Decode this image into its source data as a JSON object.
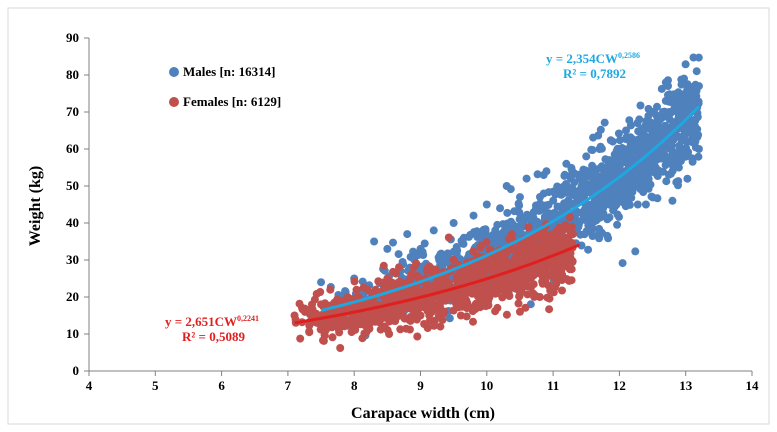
{
  "chart_data": {
    "type": "scatter",
    "title": "",
    "xlabel": "Carapace width (cm)",
    "ylabel": "Weight  (kg)",
    "xlim": [
      4,
      14
    ],
    "ylim": [
      0,
      90
    ],
    "xticks": [
      4,
      5,
      6,
      7,
      8,
      9,
      10,
      11,
      12,
      13,
      14
    ],
    "yticks": [
      0,
      10,
      20,
      30,
      40,
      50,
      60,
      70,
      80,
      90
    ],
    "grid": false,
    "legend_placement": "top-left",
    "series": [
      {
        "name": "Males [n: 16314]",
        "color": "#4F81BD",
        "x_range": [
          7.5,
          13.2
        ],
        "count": 16314,
        "points": [
          [
            7.5,
            24
          ],
          [
            7.8,
            14
          ],
          [
            7.8,
            20
          ],
          [
            8.0,
            25
          ],
          [
            8.2,
            19
          ],
          [
            8.3,
            35
          ],
          [
            8.5,
            33
          ],
          [
            8.7,
            27
          ],
          [
            8.8,
            37
          ],
          [
            9.0,
            33
          ],
          [
            9.2,
            38
          ],
          [
            9.3,
            22
          ],
          [
            9.5,
            40
          ],
          [
            9.6,
            28
          ],
          [
            9.8,
            42
          ],
          [
            9.9,
            31
          ],
          [
            10.0,
            45
          ],
          [
            10.1,
            35
          ],
          [
            10.2,
            44
          ],
          [
            10.3,
            50
          ],
          [
            10.4,
            38
          ],
          [
            10.5,
            47
          ],
          [
            10.6,
            52
          ],
          [
            10.7,
            36
          ],
          [
            10.8,
            45
          ],
          [
            10.9,
            54
          ],
          [
            11.0,
            42
          ],
          [
            11.1,
            48
          ],
          [
            11.2,
            56
          ],
          [
            11.3,
            40
          ],
          [
            11.4,
            52
          ],
          [
            11.5,
            58
          ],
          [
            11.6,
            45
          ],
          [
            11.7,
            60
          ],
          [
            11.8,
            50
          ],
          [
            11.9,
            62
          ],
          [
            12.0,
            55
          ],
          [
            12.1,
            65
          ],
          [
            12.2,
            52
          ],
          [
            12.3,
            68
          ],
          [
            12.4,
            58
          ],
          [
            12.5,
            70
          ],
          [
            12.6,
            62
          ],
          [
            12.7,
            73
          ],
          [
            12.8,
            65
          ],
          [
            12.9,
            75
          ],
          [
            13.0,
            68
          ],
          [
            13.1,
            72
          ],
          [
            13.2,
            77
          ],
          [
            12.7,
            78
          ],
          [
            12.4,
            45
          ],
          [
            12.8,
            46
          ],
          [
            10.7,
            26
          ],
          [
            9.5,
            20
          ]
        ]
      },
      {
        "name": "Females [n: 6129]",
        "color": "#C0504D",
        "x_range": [
          7.1,
          11.3
        ],
        "count": 6129,
        "points": [
          [
            7.1,
            15
          ],
          [
            7.5,
            18
          ],
          [
            7.6,
            13
          ],
          [
            7.9,
            20
          ],
          [
            8.0,
            16
          ],
          [
            8.2,
            22
          ],
          [
            8.4,
            14
          ],
          [
            8.5,
            25
          ],
          [
            8.7,
            18
          ],
          [
            8.9,
            28
          ],
          [
            9.0,
            15
          ],
          [
            9.2,
            26
          ],
          [
            9.4,
            20
          ],
          [
            9.5,
            30
          ],
          [
            9.7,
            17
          ],
          [
            9.8,
            28
          ],
          [
            10.0,
            22
          ],
          [
            10.1,
            32
          ],
          [
            10.3,
            25
          ],
          [
            10.4,
            35
          ],
          [
            10.6,
            27
          ],
          [
            10.7,
            33
          ],
          [
            10.8,
            20
          ],
          [
            11.0,
            36
          ],
          [
            11.1,
            30
          ],
          [
            11.3,
            37
          ],
          [
            10.5,
            16
          ],
          [
            9.3,
            12
          ]
        ]
      }
    ],
    "fits": [
      {
        "series": "Males [n: 16314]",
        "color": "#1FA8E0",
        "a": 2.354,
        "b": 0.2586,
        "x_range": [
          7.5,
          13.2
        ],
        "equation_prefix": "y = 2,354CW",
        "equation_exponent": "0,2586",
        "r2_label": "R² = 0,7892"
      },
      {
        "series": "Females [n: 6129]",
        "color": "#E01F1F",
        "a": 2.651,
        "b": 0.2241,
        "x_range": [
          7.1,
          11.4
        ],
        "equation_prefix": "y = 2,651CW",
        "equation_exponent": "0,2241",
        "r2_label": "R² = 0,5089"
      }
    ]
  }
}
